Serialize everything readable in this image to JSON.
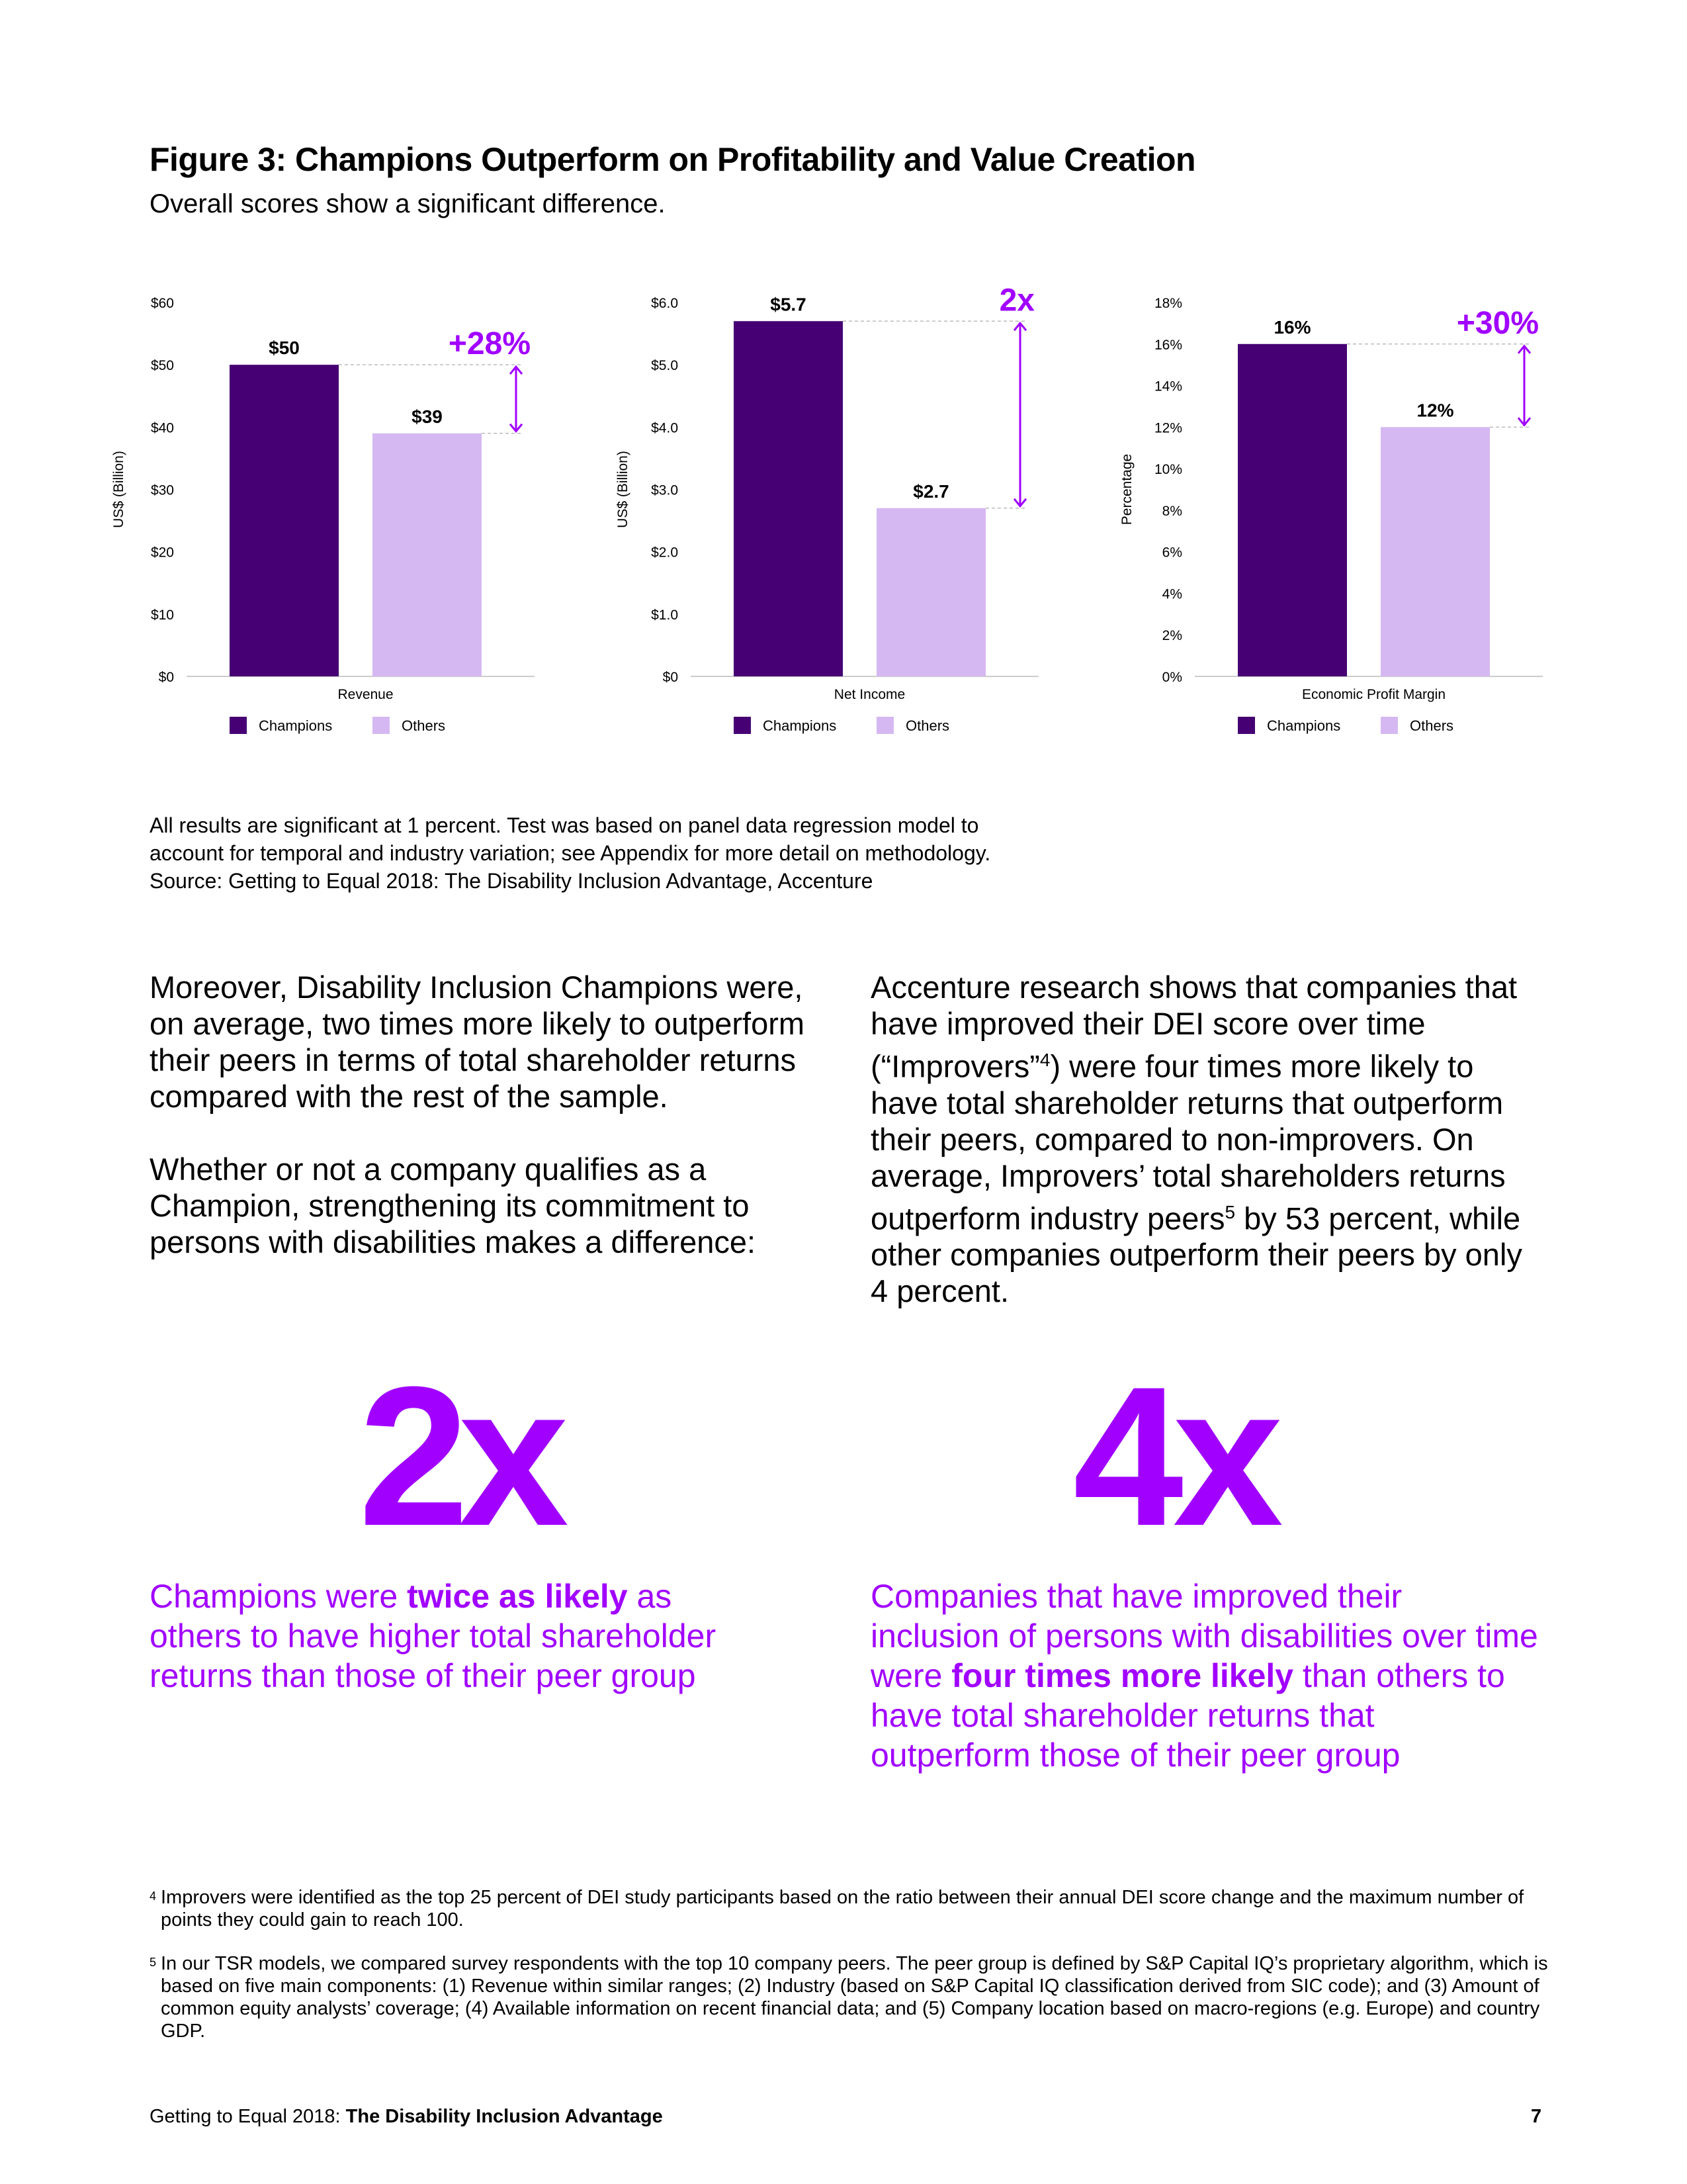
{
  "header": {
    "title": "Figure 3:  Champions Outperform on Profitability and Value Creation",
    "subtitle": "Overall scores show a significant difference."
  },
  "chart_data": [
    {
      "type": "bar",
      "categories": [
        "Revenue"
      ],
      "series": [
        {
          "name": "Champions",
          "values": [
            50
          ],
          "label": "$50",
          "color": "#460073"
        },
        {
          "name": "Others",
          "values": [
            39
          ],
          "label": "$39",
          "color": "#d5b8f2"
        }
      ],
      "xlabel": "Revenue",
      "ylabel": "US$ (Billion)",
      "ylim": [
        0,
        60
      ],
      "yticks": [
        "$0",
        "$10",
        "$20",
        "$30",
        "$40",
        "$50",
        "$60"
      ],
      "annotation": "+28%",
      "legend": [
        "Champions",
        "Others"
      ],
      "legend_position": "bottom"
    },
    {
      "type": "bar",
      "categories": [
        "Net Income"
      ],
      "series": [
        {
          "name": "Champions",
          "values": [
            5.7
          ],
          "label": "$5.7",
          "color": "#460073"
        },
        {
          "name": "Others",
          "values": [
            2.7
          ],
          "label": "$2.7",
          "color": "#d5b8f2"
        }
      ],
      "xlabel": "Net Income",
      "ylabel": "US$ (Billion)",
      "ylim": [
        0,
        6
      ],
      "yticks": [
        "$0",
        "$1.0",
        "$2.0",
        "$3.0",
        "$4.0",
        "$5.0",
        "$6.0"
      ],
      "annotation": "2x",
      "legend": [
        "Champions",
        "Others"
      ],
      "legend_position": "bottom"
    },
    {
      "type": "bar",
      "categories": [
        "Economic Profit Margin"
      ],
      "series": [
        {
          "name": "Champions",
          "values": [
            16
          ],
          "label": "16%",
          "color": "#460073"
        },
        {
          "name": "Others",
          "values": [
            12
          ],
          "label": "12%",
          "color": "#d5b8f2"
        }
      ],
      "xlabel": "Economic Profit Margin",
      "ylabel": "Percentage",
      "ylim": [
        0,
        18
      ],
      "yticks": [
        "0%",
        "2%",
        "4%",
        "6%",
        "8%",
        "10%",
        "12%",
        "14%",
        "16%",
        "18%"
      ],
      "annotation": "+30%",
      "legend": [
        "Champions",
        "Others"
      ],
      "legend_position": "bottom"
    }
  ],
  "notes": {
    "line1": "All results are significant at 1 percent. Test was based on panel data regression model to",
    "line2": "account for temporal and industry variation; see Appendix for more detail on methodology.",
    "line3": "Source: Getting to Equal 2018: The Disability Inclusion Advantage, Accenture"
  },
  "body": {
    "left_p1": "Moreover, Disability Inclusion Champions were, on average, two times more likely to outperform their peers in terms of total shareholder returns compared with the rest of the sample.",
    "left_p2": "Whether or not a company qualifies as a Champion, strengthening its commitment to persons with disabilities makes a difference:",
    "right_p1_a": "Accenture research shows that companies that have improved their DEI score over time (“Improvers”",
    "right_p1_sup": "4",
    "right_p1_b": ") were four times more likely to have total shareholder returns that outperform their peers, compared to non-improvers. On average, Improvers’ total shareholders returns outperform industry peers",
    "right_p1_sup2": "5",
    "right_p1_c": " by 53 percent, while other companies outperform their peers by only 4 percent."
  },
  "stats": {
    "left_value": "2x",
    "left_text_a": "Champions were ",
    "left_text_bold": "twice as likely",
    "left_text_b": " as others to have higher total shareholder returns than those of their peer group",
    "right_value": "4x",
    "right_text_a": "Companies that have improved their inclusion of persons with disabilities over time were ",
    "right_text_bold": "four times more likely",
    "right_text_b": " than others to have total shareholder returns that outperform those of their peer group"
  },
  "footnotes": {
    "fn4_mark": "4",
    "fn4_text": "Improvers were identified as the top 25 percent of DEI study participants based on the ratio between their annual DEI score change and the maximum number of points they could gain to reach 100.",
    "fn5_mark": "5",
    "fn5_text": "In our TSR models, we compared survey respondents with the top 10 company peers. The peer group is defined by S&P Capital IQ’s proprietary algorithm, which is based on five main components: (1) Revenue within similar ranges; (2) Industry (based on S&P Capital IQ classification derived from SIC code); and (3) Amount of common equity analysts’ coverage; (4) Available information on recent financial data; and (5) Company location based on macro-regions (e.g. Europe) and country GDP."
  },
  "footer": {
    "left_a": "Getting to Equal 2018: ",
    "left_bold": "The Disability Inclusion Advantage",
    "page_number": "7"
  },
  "colors": {
    "accent": "#a100ff",
    "champions": "#460073",
    "others": "#d5b8f2"
  }
}
